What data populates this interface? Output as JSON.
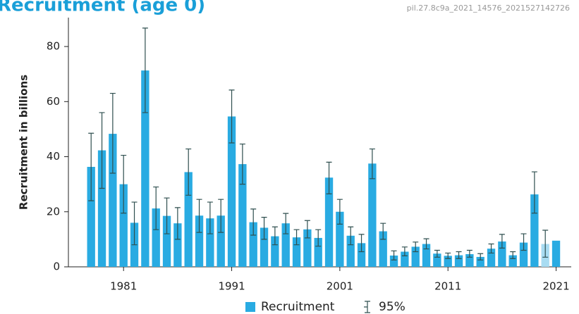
{
  "chart_data": {
    "type": "bar",
    "title": "Recruitment (age 0)",
    "subtitle": "pil.27.8c9a_2021_14576_2021527142726",
    "y_label": "Recruitment in billions",
    "x": [
      1978,
      1979,
      1980,
      1981,
      1982,
      1983,
      1984,
      1985,
      1986,
      1987,
      1988,
      1989,
      1990,
      1991,
      1992,
      1993,
      1994,
      1995,
      1996,
      1997,
      1998,
      1999,
      2000,
      2001,
      2002,
      2003,
      2004,
      2005,
      2006,
      2007,
      2008,
      2009,
      2010,
      2011,
      2012,
      2013,
      2014,
      2015,
      2016,
      2017,
      2018,
      2019,
      2020,
      2021
    ],
    "series": [
      {
        "name": "Recruitment",
        "color": "#29abe2",
        "colors": [
          "#29abe2",
          "#29abe2",
          "#29abe2",
          "#29abe2",
          "#29abe2",
          "#29abe2",
          "#29abe2",
          "#29abe2",
          "#29abe2",
          "#29abe2",
          "#29abe2",
          "#29abe2",
          "#29abe2",
          "#29abe2",
          "#29abe2",
          "#29abe2",
          "#29abe2",
          "#29abe2",
          "#29abe2",
          "#29abe2",
          "#29abe2",
          "#29abe2",
          "#29abe2",
          "#29abe2",
          "#29abe2",
          "#29abe2",
          "#29abe2",
          "#29abe2",
          "#29abe2",
          "#29abe2",
          "#29abe2",
          "#29abe2",
          "#29abe2",
          "#29abe2",
          "#29abe2",
          "#29abe2",
          "#29abe2",
          "#29abe2",
          "#29abe2",
          "#29abe2",
          "#29abe2",
          "#29abe2",
          "#a8dcf2",
          "#29abe2"
        ],
        "values": [
          36.3,
          42.3,
          48.3,
          30,
          16,
          71.3,
          21.2,
          18.5,
          15.8,
          34.4,
          18.6,
          17.6,
          18.6,
          54.6,
          37.3,
          16.2,
          14.2,
          11.1,
          15.8,
          10.7,
          13.6,
          10.5,
          32.4,
          20,
          11.3,
          8.6,
          37.5,
          12.9,
          4.1,
          5.5,
          7.3,
          8.3,
          4.8,
          4,
          4.2,
          4.6,
          3.6,
          6.6,
          9.2,
          4.2,
          8.8,
          26.3,
          8.3,
          9.5
        ]
      }
    ],
    "error": {
      "name": "95%",
      "color": "#2f4f4f",
      "lower": [
        24,
        28.5,
        34,
        19.5,
        8,
        56,
        13.5,
        12,
        10,
        26,
        12.5,
        12,
        12.5,
        45,
        30,
        11.5,
        10,
        8,
        12,
        8,
        10.5,
        7.5,
        26.5,
        15.5,
        8,
        5.5,
        32,
        10,
        2.5,
        4,
        5.5,
        6.5,
        3.5,
        3,
        3,
        3.5,
        2.5,
        5,
        6.8,
        3,
        6,
        19.5,
        3.5,
        null
      ],
      "upper": [
        48.5,
        56,
        63,
        40.5,
        23.5,
        86.7,
        29,
        25,
        21.5,
        42.8,
        24.5,
        23.5,
        24.5,
        64.2,
        44.6,
        21,
        18,
        14.5,
        19.4,
        13.5,
        16.8,
        13.5,
        38,
        24.5,
        14.5,
        11.8,
        42.8,
        15.8,
        5.8,
        7.2,
        9,
        10.2,
        6,
        5,
        5.5,
        6,
        4.8,
        8.3,
        11.8,
        5.5,
        12,
        34.5,
        13.3,
        null
      ]
    },
    "xlim": [
      1975.9,
      2022.4
    ],
    "xticks": [
      1981,
      1991,
      2001,
      2011,
      2021
    ],
    "ylim": [
      0,
      90.5
    ],
    "yticks": [
      0,
      20,
      40,
      60,
      80
    ],
    "grid": false,
    "legend": "bottom"
  }
}
